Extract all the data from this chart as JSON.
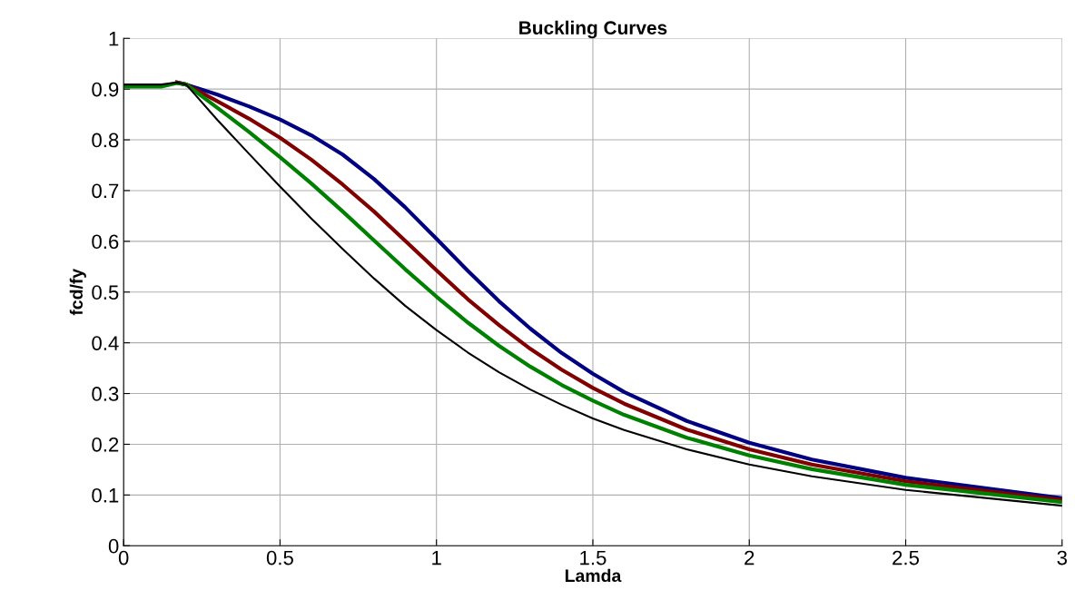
{
  "chart_data": {
    "type": "line",
    "title": "Buckling Curves",
    "xlabel": "Lamda",
    "ylabel": "fcd/fy",
    "x": [
      0,
      0.12,
      0.17,
      0.2,
      0.3,
      0.4,
      0.5,
      0.6,
      0.7,
      0.8,
      0.9,
      1.0,
      1.1,
      1.2,
      1.3,
      1.4,
      1.5,
      1.6,
      1.8,
      2.0,
      2.2,
      2.5,
      3.0
    ],
    "series": [
      {
        "color": "#000080",
        "values": [
          null,
          null,
          0.913,
          0.909,
          0.889,
          0.866,
          0.84,
          0.809,
          0.771,
          0.723,
          0.667,
          0.605,
          0.542,
          0.482,
          0.428,
          0.38,
          0.339,
          0.303,
          0.246,
          0.203,
          0.17,
          0.134,
          0.094
        ]
      },
      {
        "color": "#800000",
        "values": [
          null,
          null,
          0.913,
          0.909,
          0.876,
          0.842,
          0.804,
          0.761,
          0.712,
          0.659,
          0.601,
          0.543,
          0.486,
          0.435,
          0.388,
          0.347,
          0.311,
          0.28,
          0.229,
          0.19,
          0.16,
          0.127,
          0.09
        ]
      },
      {
        "color": "#008000",
        "values": [
          0.905,
          0.905,
          0.912,
          0.909,
          0.863,
          0.816,
          0.766,
          0.714,
          0.659,
          0.602,
          0.545,
          0.491,
          0.44,
          0.394,
          0.353,
          0.317,
          0.286,
          0.258,
          0.213,
          0.178,
          0.151,
          0.12,
          0.086
        ]
      },
      {
        "color": "#000000",
        "values": [
          0.909,
          0.909,
          0.913,
          0.909,
          0.839,
          0.773,
          0.708,
          0.645,
          0.585,
          0.527,
          0.473,
          0.425,
          0.381,
          0.342,
          0.308,
          0.278,
          0.251,
          0.228,
          0.19,
          0.16,
          0.137,
          0.11,
          0.079
        ]
      }
    ],
    "xlim": [
      0,
      3
    ],
    "xticks": [
      0,
      0.5,
      1,
      1.5,
      2,
      2.5,
      3
    ],
    "ylim": [
      0,
      1
    ],
    "yticks": [
      0,
      0.1,
      0.2,
      0.3,
      0.4,
      0.5,
      0.6,
      0.7,
      0.8,
      0.9,
      1
    ],
    "grid": true,
    "marker": "none",
    "line_style": "solid"
  }
}
